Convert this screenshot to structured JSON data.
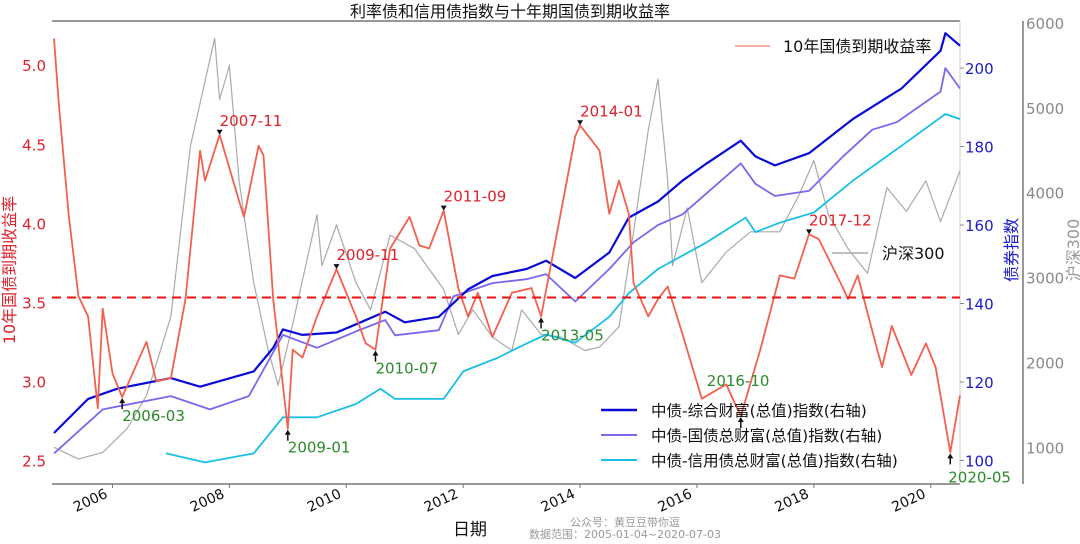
{
  "chart_data": {
    "type": "line",
    "title": "利率债和信用债指数与十年期国债到期收益率",
    "xlabel": "日期",
    "ylabel_left": "10年国债到期收益率",
    "ylabel_right": "债券指数",
    "ylabel_right2": "沪深300",
    "xlim": [
      "2005-01",
      "2020-07"
    ],
    "xticks": [
      "2006",
      "2008",
      "2010",
      "2012",
      "2014",
      "2016",
      "2018",
      "2020"
    ],
    "ylim_left": [
      2.35,
      5.28
    ],
    "yticks_left": [
      "2.5",
      "3.0",
      "3.5",
      "4.0",
      "4.5",
      "5.0"
    ],
    "ylim_right": [
      94,
      212
    ],
    "yticks_right": [
      "100",
      "120",
      "140",
      "160",
      "180",
      "200"
    ],
    "ylim_right2": [
      567,
      6024
    ],
    "yticks_right2": [
      "1000",
      "2000",
      "3000",
      "4000",
      "5000",
      "6000"
    ],
    "grid": false,
    "mean_line": {
      "axis": "left",
      "value": 3.53,
      "style": "dashed",
      "color": "#ee1111"
    },
    "colors": {
      "yield": "#f4604e",
      "hs300": "#aaaaaa",
      "composite": "#0a0ad8",
      "gov": "#7b68ee",
      "credit": "#18bfe8",
      "left_axis": "#e0202a",
      "right_axis": "#1a1acc",
      "right2_axis": "#888888",
      "peak_label": "#e0202a",
      "trough_label": "#2a8a2a"
    },
    "series": [
      {
        "key": "yield",
        "name": "10年国债到期收益率",
        "axis": "left",
        "points": [
          [
            "2005-01",
            5.17
          ],
          [
            "2005-02",
            4.75
          ],
          [
            "2005-04",
            4.06
          ],
          [
            "2005-06",
            3.54
          ],
          [
            "2005-08",
            3.41
          ],
          [
            "2005-10",
            2.83
          ],
          [
            "2005-11",
            3.46
          ],
          [
            "2006-01",
            3.05
          ],
          [
            "2006-03",
            2.9
          ],
          [
            "2006-08",
            3.25
          ],
          [
            "2006-10",
            3.0
          ],
          [
            "2007-01",
            3.02
          ],
          [
            "2007-04",
            3.52
          ],
          [
            "2007-07",
            4.46
          ],
          [
            "2007-08",
            4.27
          ],
          [
            "2007-11",
            4.56
          ],
          [
            "2008-03",
            4.14
          ],
          [
            "2008-04",
            4.04
          ],
          [
            "2008-07",
            4.49
          ],
          [
            "2008-08",
            4.43
          ],
          [
            "2008-10",
            3.52
          ],
          [
            "2009-01",
            2.7
          ],
          [
            "2009-02",
            3.2
          ],
          [
            "2009-04",
            3.15
          ],
          [
            "2009-07",
            3.41
          ],
          [
            "2009-11",
            3.71
          ],
          [
            "2010-03",
            3.41
          ],
          [
            "2010-05",
            3.24
          ],
          [
            "2010-07",
            3.2
          ],
          [
            "2010-10",
            3.84
          ],
          [
            "2011-02",
            4.04
          ],
          [
            "2011-04",
            3.86
          ],
          [
            "2011-06",
            3.84
          ],
          [
            "2011-09",
            4.08
          ],
          [
            "2011-12",
            3.59
          ],
          [
            "2012-02",
            3.41
          ],
          [
            "2012-04",
            3.56
          ],
          [
            "2012-07",
            3.28
          ],
          [
            "2012-11",
            3.56
          ],
          [
            "2013-03",
            3.59
          ],
          [
            "2013-05",
            3.41
          ],
          [
            "2013-09",
            4.06
          ],
          [
            "2013-12",
            4.55
          ],
          [
            "2014-01",
            4.62
          ],
          [
            "2014-05",
            4.46
          ],
          [
            "2014-07",
            4.06
          ],
          [
            "2014-09",
            4.27
          ],
          [
            "2014-11",
            4.06
          ],
          [
            "2014-12",
            3.62
          ],
          [
            "2015-03",
            3.41
          ],
          [
            "2015-05",
            3.52
          ],
          [
            "2015-07",
            3.6
          ],
          [
            "2015-10",
            3.3
          ],
          [
            "2016-02",
            2.89
          ],
          [
            "2016-07",
            2.98
          ],
          [
            "2016-10",
            2.78
          ],
          [
            "2017-02",
            3.2
          ],
          [
            "2017-06",
            3.67
          ],
          [
            "2017-09",
            3.65
          ],
          [
            "2017-12",
            3.93
          ],
          [
            "2018-02",
            3.9
          ],
          [
            "2018-07",
            3.59
          ],
          [
            "2018-08",
            3.52
          ],
          [
            "2018-10",
            3.67
          ],
          [
            "2019-02",
            3.2
          ],
          [
            "2019-03",
            3.09
          ],
          [
            "2019-05",
            3.35
          ],
          [
            "2019-09",
            3.04
          ],
          [
            "2019-12",
            3.24
          ],
          [
            "2020-02",
            3.09
          ],
          [
            "2020-05",
            2.55
          ],
          [
            "2020-07",
            2.91
          ]
        ]
      },
      {
        "key": "hs300",
        "name": "沪深300",
        "axis": "right2",
        "points": [
          [
            "2005-01",
            1000
          ],
          [
            "2005-06",
            860
          ],
          [
            "2005-11",
            940
          ],
          [
            "2006-04",
            1220
          ],
          [
            "2006-08",
            1610
          ],
          [
            "2007-01",
            2540
          ],
          [
            "2007-05",
            4550
          ],
          [
            "2007-10",
            5820
          ],
          [
            "2007-11",
            5100
          ],
          [
            "2008-01",
            5500
          ],
          [
            "2008-03",
            4140
          ],
          [
            "2008-06",
            2940
          ],
          [
            "2008-09",
            2140
          ],
          [
            "2008-11",
            1730
          ],
          [
            "2009-02",
            2450
          ],
          [
            "2009-07",
            3740
          ],
          [
            "2009-08",
            3140
          ],
          [
            "2009-11",
            3620
          ],
          [
            "2010-03",
            2940
          ],
          [
            "2010-06",
            2620
          ],
          [
            "2010-10",
            3500
          ],
          [
            "2011-03",
            3340
          ],
          [
            "2011-06",
            3100
          ],
          [
            "2011-09",
            2860
          ],
          [
            "2011-12",
            2330
          ],
          [
            "2012-03",
            2620
          ],
          [
            "2012-07",
            2300
          ],
          [
            "2012-11",
            2140
          ],
          [
            "2013-01",
            2620
          ],
          [
            "2013-05",
            2330
          ],
          [
            "2013-09",
            2300
          ],
          [
            "2014-02",
            2140
          ],
          [
            "2014-05",
            2180
          ],
          [
            "2014-09",
            2420
          ],
          [
            "2014-12",
            3540
          ],
          [
            "2015-03",
            4740
          ],
          [
            "2015-05",
            5340
          ],
          [
            "2015-07",
            4140
          ],
          [
            "2015-08",
            3140
          ],
          [
            "2015-11",
            3820
          ],
          [
            "2016-02",
            2940
          ],
          [
            "2016-07",
            3300
          ],
          [
            "2016-12",
            3540
          ],
          [
            "2017-06",
            3540
          ],
          [
            "2017-10",
            3980
          ],
          [
            "2018-01",
            4380
          ],
          [
            "2018-04",
            3740
          ],
          [
            "2018-08",
            3340
          ],
          [
            "2018-12",
            3050
          ],
          [
            "2019-04",
            4060
          ],
          [
            "2019-08",
            3780
          ],
          [
            "2019-12",
            4140
          ],
          [
            "2020-03",
            3660
          ],
          [
            "2020-07",
            4260
          ]
        ]
      },
      {
        "key": "composite",
        "name": "中债-综合财富(总值)指数(右轴)",
        "axis": "right",
        "points": [
          [
            "2005-01",
            107
          ],
          [
            "2005-08",
            115.7
          ],
          [
            "2006-02",
            118.3
          ],
          [
            "2007-01",
            121
          ],
          [
            "2007-07",
            118.8
          ],
          [
            "2008-06",
            122.7
          ],
          [
            "2008-10",
            128.7
          ],
          [
            "2008-12",
            133.4
          ],
          [
            "2009-04",
            132
          ],
          [
            "2009-11",
            132.6
          ],
          [
            "2010-03",
            134.7
          ],
          [
            "2010-09",
            137.9
          ],
          [
            "2011-01",
            135.2
          ],
          [
            "2011-08",
            136.6
          ],
          [
            "2012-02",
            143.6
          ],
          [
            "2012-07",
            147
          ],
          [
            "2013-02",
            148.8
          ],
          [
            "2013-06",
            150.9
          ],
          [
            "2013-12",
            146.5
          ],
          [
            "2014-07",
            153
          ],
          [
            "2014-11",
            161.9
          ],
          [
            "2015-05",
            166
          ],
          [
            "2015-10",
            171.3
          ],
          [
            "2016-03",
            175.7
          ],
          [
            "2016-10",
            181.5
          ],
          [
            "2017-01",
            177.5
          ],
          [
            "2017-05",
            175.2
          ],
          [
            "2017-12",
            178.3
          ],
          [
            "2018-09",
            187
          ],
          [
            "2019-07",
            194.8
          ],
          [
            "2020-03",
            204.4
          ],
          [
            "2020-04",
            208.9
          ],
          [
            "2020-07",
            205.7
          ]
        ]
      },
      {
        "key": "gov",
        "name": "中债-国债总财富(总值)指数(右轴)",
        "axis": "right",
        "points": [
          [
            "2005-01",
            101.8
          ],
          [
            "2005-11",
            113
          ],
          [
            "2007-01",
            116.4
          ],
          [
            "2007-09",
            113
          ],
          [
            "2008-05",
            116.4
          ],
          [
            "2008-12",
            132
          ],
          [
            "2009-07",
            128.7
          ],
          [
            "2010-03",
            132.9
          ],
          [
            "2010-09",
            135.8
          ],
          [
            "2010-11",
            131.9
          ],
          [
            "2011-08",
            133.2
          ],
          [
            "2011-11",
            141.8
          ],
          [
            "2012-07",
            145.2
          ],
          [
            "2013-02",
            146.2
          ],
          [
            "2013-06",
            147.5
          ],
          [
            "2013-12",
            140.5
          ],
          [
            "2014-07",
            148.8
          ],
          [
            "2014-12",
            155.6
          ],
          [
            "2015-05",
            160
          ],
          [
            "2015-10",
            162.7
          ],
          [
            "2016-10",
            175.7
          ],
          [
            "2017-01",
            170.5
          ],
          [
            "2017-05",
            167.4
          ],
          [
            "2017-12",
            168.7
          ],
          [
            "2018-07",
            177.5
          ],
          [
            "2019-01",
            184.3
          ],
          [
            "2019-06",
            186.2
          ],
          [
            "2020-03",
            194
          ],
          [
            "2020-04",
            200
          ],
          [
            "2020-07",
            194.8
          ]
        ]
      },
      {
        "key": "credit",
        "name": "中债-信用债总财富(总值)指数(右轴)",
        "axis": "right",
        "points": [
          [
            "2006-12",
            101.8
          ],
          [
            "2007-08",
            99.5
          ],
          [
            "2008-06",
            101.8
          ],
          [
            "2008-12",
            111
          ],
          [
            "2009-07",
            111
          ],
          [
            "2010-03",
            114.4
          ],
          [
            "2010-08",
            118.3
          ],
          [
            "2010-11",
            115.7
          ],
          [
            "2011-09",
            115.7
          ],
          [
            "2012-01",
            122.7
          ],
          [
            "2012-08",
            126.1
          ],
          [
            "2013-01",
            129.2
          ],
          [
            "2013-06",
            132.1
          ],
          [
            "2013-12",
            130
          ],
          [
            "2014-07",
            136.6
          ],
          [
            "2014-11",
            142.6
          ],
          [
            "2015-05",
            148.8
          ],
          [
            "2016-03",
            155.6
          ],
          [
            "2016-11",
            161.9
          ],
          [
            "2017-01",
            158.2
          ],
          [
            "2017-06",
            160.6
          ],
          [
            "2018-01",
            163.2
          ],
          [
            "2018-09",
            171.3
          ],
          [
            "2019-07",
            180.2
          ],
          [
            "2020-04",
            188.3
          ],
          [
            "2020-07",
            187
          ]
        ]
      }
    ],
    "peaks": [
      {
        "label": "2007-11",
        "date": "2007-11",
        "value": 4.56
      },
      {
        "label": "2009-11",
        "date": "2009-11",
        "value": 3.71
      },
      {
        "label": "2011-09",
        "date": "2011-09",
        "value": 4.08
      },
      {
        "label": "2014-01",
        "date": "2014-01",
        "value": 4.62
      },
      {
        "label": "2017-12",
        "date": "2017-12",
        "value": 3.93
      }
    ],
    "troughs": [
      {
        "label": "2006-03",
        "date": "2006-03",
        "value": 2.9
      },
      {
        "label": "2009-01",
        "date": "2009-01",
        "value": 2.7
      },
      {
        "label": "2010-07",
        "date": "2010-07",
        "value": 3.2
      },
      {
        "label": "2013-05",
        "date": "2013-05",
        "value": 3.41
      },
      {
        "label": "2016-10",
        "date": "2016-10",
        "value": 2.78
      },
      {
        "label": "2020-05",
        "date": "2020-05",
        "value": 2.55
      }
    ],
    "legend": {
      "top_right": [
        "10年国债到期收益率"
      ],
      "middle_right": [
        "沪深300"
      ],
      "bottom_right": [
        "中债-综合财富(总值)指数(右轴)",
        "中债-国债总财富(总值)指数(右轴)",
        "中债-信用债总财富(总值)指数(右轴)"
      ]
    }
  },
  "footer": {
    "source_account": "公众号：黄豆豆带你逗",
    "data_range": "数据范围：2005-01-04~2020-07-03"
  }
}
